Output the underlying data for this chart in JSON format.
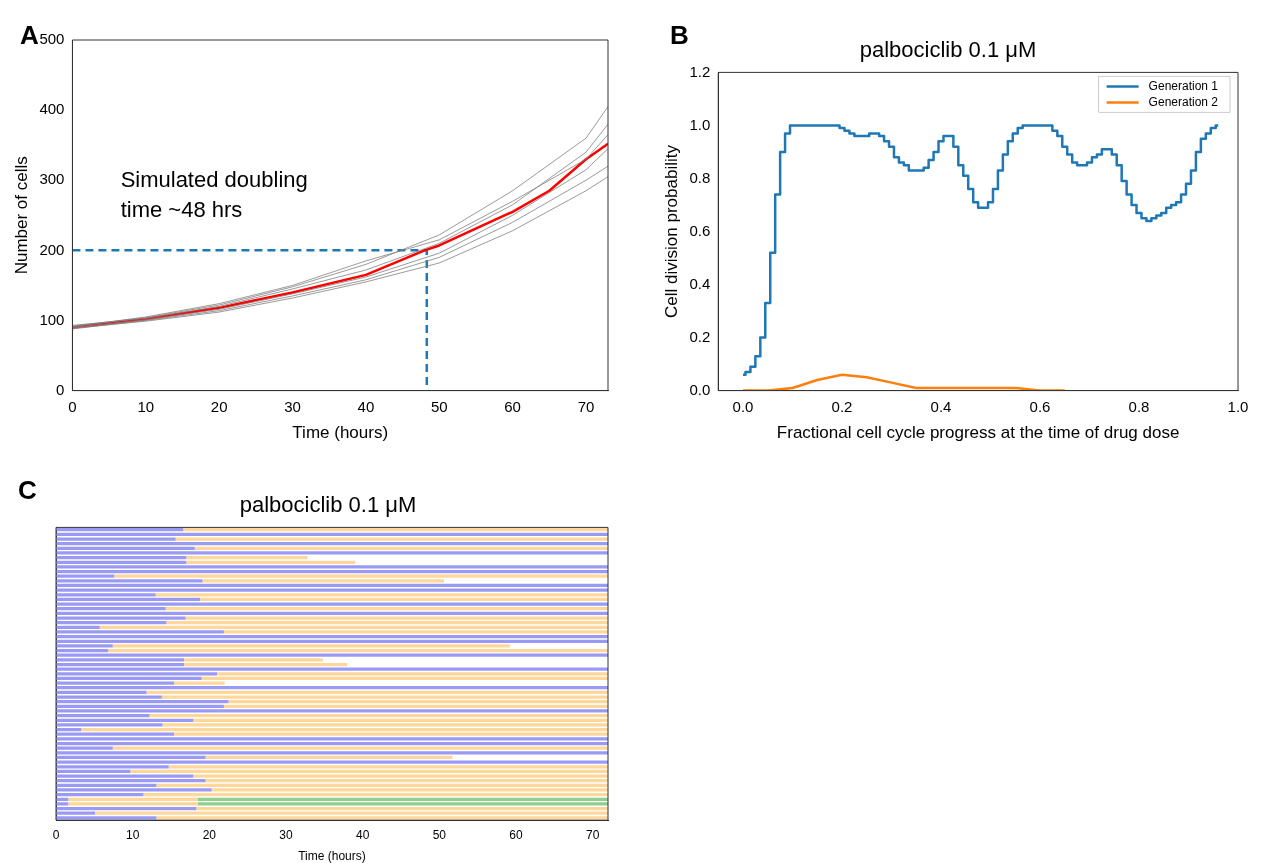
{
  "chart_data": [
    {
      "type": "line",
      "annotations": [
        "A",
        "Simulated doubling time ~48 hrs"
      ],
      "xlabel": "Time (hours)",
      "ylabel": "Number of cells",
      "xlim": [
        0,
        73
      ],
      "xticks": [
        0,
        10,
        20,
        30,
        40,
        50,
        60,
        70
      ],
      "ylim": [
        0,
        500
      ],
      "yticks": [
        0,
        100,
        200,
        300,
        400,
        500
      ],
      "grid": false,
      "legend": false,
      "marker": "none",
      "series": [
        {
          "color": "#808080",
          "x": [
            0,
            10,
            20,
            30,
            40,
            50,
            60,
            70,
            73
          ],
          "values": [
            92,
            104,
            122,
            148,
            180,
            222,
            285,
            360,
            405
          ]
        },
        {
          "color": "#808080",
          "x": [
            0,
            10,
            20,
            30,
            40,
            50,
            60,
            70,
            73
          ],
          "values": [
            88,
            100,
            114,
            135,
            158,
            190,
            240,
            300,
            320
          ]
        },
        {
          "color": "#808080",
          "x": [
            0,
            10,
            20,
            30,
            40,
            50,
            60,
            70,
            73
          ],
          "values": [
            93,
            103,
            120,
            145,
            172,
            210,
            265,
            340,
            380
          ]
        },
        {
          "color": "#808080",
          "x": [
            0,
            10,
            20,
            30,
            40,
            50,
            60,
            70,
            73
          ],
          "values": [
            90,
            101,
            116,
            138,
            162,
            196,
            250,
            315,
            345
          ]
        },
        {
          "color": "#808080",
          "x": [
            0,
            10,
            20,
            30,
            40,
            50,
            60,
            70,
            73
          ],
          "values": [
            91,
            105,
            124,
            150,
            185,
            215,
            270,
            330,
            365
          ]
        },
        {
          "color": "#808080",
          "x": [
            0,
            10,
            20,
            30,
            40,
            50,
            60,
            70,
            73
          ],
          "values": [
            89,
            99,
            112,
            132,
            155,
            182,
            228,
            285,
            305
          ]
        },
        {
          "color": "#ff0000",
          "x": [
            0,
            10,
            20,
            30,
            40,
            48,
            50,
            60,
            65,
            70,
            73
          ],
          "values": [
            90,
            102,
            118,
            140,
            165,
            200,
            207,
            255,
            285,
            330,
            352
          ]
        },
        {
          "color": "#1f77b4",
          "line_style": "dashed",
          "x": [
            0,
            48.3,
            48.3
          ],
          "values": [
            200,
            200,
            0
          ]
        }
      ]
    },
    {
      "type": "line",
      "annotations": [
        "B"
      ],
      "title": "palbociclib 0.1 μM",
      "xlabel": "Fractional cell cycle progress at the time of drug dose",
      "ylabel": "Cell division probability",
      "xlim": [
        -0.05,
        1
      ],
      "xticks": [
        {
          "value": 0,
          "label": "0.0"
        },
        0.2,
        0.4,
        0.6,
        0.8,
        {
          "value": 1,
          "label": "1.0"
        }
      ],
      "ylim": [
        0,
        1.2
      ],
      "yticks": [
        {
          "value": 0,
          "label": "0.0"
        },
        0.2,
        0.4,
        0.6,
        0.8,
        {
          "value": 1,
          "label": "1.0"
        },
        1.2
      ],
      "grid": false,
      "legend": "top right",
      "marker": "none",
      "series": [
        {
          "name": "Generation 1",
          "type": "step",
          "color": "#1f77b4",
          "x": [
            0,
            0.01,
            0.02,
            0.03,
            0.04,
            0.05,
            0.06,
            0.07,
            0.08,
            0.09,
            0.1,
            0.11,
            0.12,
            0.13,
            0.14,
            0.15,
            0.16,
            0.17,
            0.18,
            0.19,
            0.2,
            0.21,
            0.22,
            0.23,
            0.24,
            0.25,
            0.26,
            0.27,
            0.28,
            0.29,
            0.3,
            0.31,
            0.32,
            0.33,
            0.34,
            0.35,
            0.36,
            0.37,
            0.38,
            0.39,
            0.4,
            0.41,
            0.42,
            0.43,
            0.44,
            0.45,
            0.46,
            0.47,
            0.48,
            0.49,
            0.5,
            0.51,
            0.52,
            0.53,
            0.54,
            0.55,
            0.56,
            0.57,
            0.58,
            0.59,
            0.6,
            0.61,
            0.62,
            0.63,
            0.64,
            0.65,
            0.66,
            0.67,
            0.68,
            0.69,
            0.7,
            0.71,
            0.72,
            0.73,
            0.74,
            0.75,
            0.76,
            0.77,
            0.78,
            0.79,
            0.8,
            0.81,
            0.82,
            0.83,
            0.84,
            0.85,
            0.86,
            0.87,
            0.88,
            0.89,
            0.9,
            0.91,
            0.92,
            0.93,
            0.94,
            0.95,
            0.96
          ],
          "values": [
            0.06,
            0.07,
            0.09,
            0.13,
            0.2,
            0.33,
            0.52,
            0.74,
            0.9,
            0.97,
            1,
            1,
            1,
            1,
            1,
            1,
            1,
            1,
            1,
            1,
            0.99,
            0.98,
            0.97,
            0.96,
            0.96,
            0.96,
            0.97,
            0.97,
            0.96,
            0.94,
            0.92,
            0.88,
            0.86,
            0.85,
            0.83,
            0.83,
            0.83,
            0.84,
            0.87,
            0.9,
            0.94,
            0.96,
            0.96,
            0.92,
            0.85,
            0.81,
            0.76,
            0.71,
            0.69,
            0.69,
            0.71,
            0.76,
            0.83,
            0.89,
            0.94,
            0.97,
            0.99,
            1,
            1,
            1,
            1,
            1,
            1,
            0.98,
            0.96,
            0.92,
            0.89,
            0.86,
            0.85,
            0.85,
            0.86,
            0.88,
            0.89,
            0.91,
            0.91,
            0.89,
            0.85,
            0.79,
            0.74,
            0.7,
            0.67,
            0.65,
            0.64,
            0.65,
            0.66,
            0.67,
            0.69,
            0.7,
            0.71,
            0.74,
            0.78,
            0.83,
            0.9,
            0.95,
            0.97,
            0.99,
            1
          ]
        },
        {
          "name": "Generation 2",
          "type": "line",
          "color": "#ff7f0e",
          "x": [
            0,
            0.05,
            0.1,
            0.15,
            0.2,
            0.25,
            0.3,
            0.35,
            0.4,
            0.45,
            0.5,
            0.55,
            0.6,
            0.65
          ],
          "values": [
            0,
            0,
            0.01,
            0.04,
            0.06,
            0.05,
            0.03,
            0.01,
            0.01,
            0.01,
            0.01,
            0.01,
            0,
            0
          ]
        }
      ]
    },
    {
      "type": "bar",
      "annotations": [
        "C"
      ],
      "title": "palbociclib 0.1 μM",
      "xlabel": "Time (hours)",
      "orientation": "horizontal",
      "stacked": true,
      "tick_labels": "x",
      "xlim": [
        0,
        72
      ],
      "xticks": [
        0,
        10,
        20,
        30,
        40,
        50,
        60,
        70
      ],
      "grid": false,
      "legend": false,
      "categories": [
        null,
        null,
        null,
        null,
        null,
        null,
        null,
        null,
        null,
        null,
        null,
        null,
        null,
        null,
        null,
        null,
        null,
        null,
        null,
        null,
        null,
        null,
        null,
        null,
        null,
        null,
        null,
        null,
        null,
        null,
        null,
        null,
        null,
        null,
        null,
        null,
        null,
        null,
        null,
        null,
        null,
        null,
        null,
        null,
        null,
        null,
        null,
        null,
        null,
        null,
        null,
        null,
        null,
        null,
        null,
        null,
        null,
        null,
        null,
        null,
        null,
        null,
        null
      ],
      "series": [
        {
          "color": "#9a9af5",
          "values": [
            16.6,
            72,
            15.6,
            72,
            18.1,
            72,
            17,
            17,
            72,
            72,
            7.6,
            19.1,
            72,
            72,
            13,
            18.8,
            72,
            14.3,
            72,
            16.9,
            14.4,
            5.7,
            21.9,
            72,
            72,
            7.4,
            6.8,
            72,
            16.7,
            16.7,
            72,
            21,
            19,
            15.4,
            72,
            11.8,
            13.8,
            22.5,
            21.9,
            72,
            12.2,
            17.9,
            13.9,
            3.3,
            15.4,
            72,
            72,
            7.4,
            72,
            19.5,
            72,
            14.7,
            9.7,
            17.9,
            19.5,
            13.1,
            20.3,
            11.4,
            1.6,
            1.6,
            18.3,
            5.1,
            13.1
          ]
        },
        {
          "color": "#ffd79a",
          "values": [
            55.4,
            0,
            56.4,
            0,
            53.9,
            0,
            15.8,
            22,
            0,
            0,
            64.4,
            31.5,
            0,
            0,
            59,
            53.2,
            0,
            57.7,
            0,
            55.1,
            57.6,
            66.3,
            50.1,
            0,
            0,
            51.8,
            65.2,
            0,
            18.1,
            21.3,
            0,
            51,
            53,
            6.6,
            0,
            60.2,
            58.2,
            49.5,
            50.1,
            0,
            59.8,
            54.1,
            58.1,
            68.7,
            56.6,
            0,
            0,
            64.6,
            0,
            32.2,
            0,
            57.3,
            62.3,
            54.1,
            52.5,
            58.9,
            51.7,
            60.6,
            16.9,
            16.9,
            53.7,
            66.9,
            58.9
          ]
        },
        {
          "color": "#8fcf8f",
          "values": [
            0,
            0,
            0,
            0,
            0,
            0,
            0,
            0,
            0,
            0,
            0,
            0,
            0,
            0,
            0,
            0,
            0,
            0,
            0,
            0,
            0,
            0,
            0,
            0,
            0,
            0,
            0,
            0,
            0,
            0,
            0,
            0,
            0,
            0,
            0,
            0,
            0,
            0,
            0,
            0,
            0,
            0,
            0,
            0,
            0,
            0,
            0,
            0,
            0,
            0,
            0,
            0,
            0,
            0,
            0,
            0,
            0,
            0,
            53.5,
            53.5,
            0,
            0,
            0
          ]
        }
      ]
    }
  ]
}
